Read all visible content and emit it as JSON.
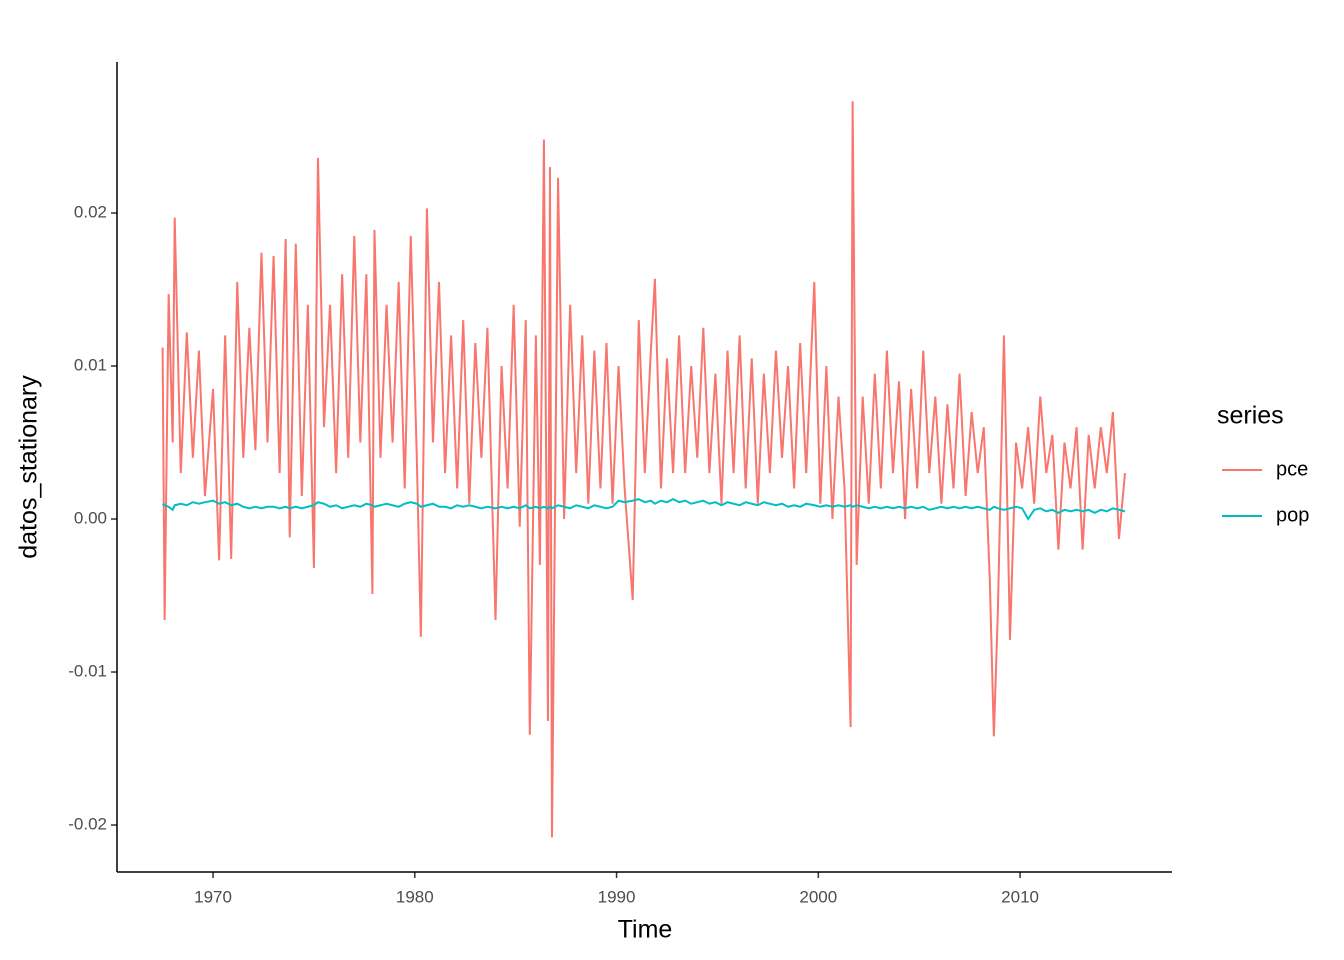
{
  "chart_data": {
    "type": "line",
    "x_label": "Time",
    "y_label": "datos_stationary",
    "legend_title": "series",
    "legend": "right",
    "x": [
      1967.5,
      1967.6,
      1967.8,
      1968.0,
      1968.1,
      1968.4,
      1968.7,
      1969.0,
      1969.3,
      1969.6,
      1970.0,
      1970.3,
      1970.6,
      1970.9,
      1971.2,
      1971.5,
      1971.8,
      1972.1,
      1972.4,
      1972.7,
      1973.0,
      1973.3,
      1973.6,
      1973.8,
      1974.1,
      1974.4,
      1974.7,
      1975.0,
      1975.2,
      1975.5,
      1975.8,
      1976.1,
      1976.4,
      1976.7,
      1977.0,
      1977.3,
      1977.6,
      1977.9,
      1978.0,
      1978.3,
      1978.6,
      1978.9,
      1979.2,
      1979.5,
      1979.8,
      1980.1,
      1980.3,
      1980.6,
      1980.9,
      1981.2,
      1981.5,
      1981.8,
      1982.1,
      1982.4,
      1982.7,
      1983.0,
      1983.3,
      1983.6,
      1984.0,
      1984.3,
      1984.6,
      1984.9,
      1985.2,
      1985.5,
      1985.7,
      1986.0,
      1986.2,
      1986.4,
      1986.6,
      1986.7,
      1986.8,
      1987.1,
      1987.4,
      1987.7,
      1988.0,
      1988.3,
      1988.6,
      1988.9,
      1989.2,
      1989.5,
      1989.8,
      1990.1,
      1990.4,
      1990.8,
      1991.1,
      1991.4,
      1991.7,
      1991.9,
      1992.2,
      1992.5,
      1992.8,
      1993.1,
      1993.4,
      1993.7,
      1994.0,
      1994.3,
      1994.6,
      1994.9,
      1995.2,
      1995.5,
      1995.8,
      1996.1,
      1996.4,
      1996.7,
      1997.0,
      1997.3,
      1997.6,
      1997.9,
      1998.2,
      1998.5,
      1998.8,
      1999.1,
      1999.4,
      1999.8,
      2000.1,
      2000.4,
      2000.7,
      2001.0,
      2001.3,
      2001.6,
      2001.7,
      2001.9,
      2002.2,
      2002.5,
      2002.8,
      2003.1,
      2003.4,
      2003.7,
      2004.0,
      2004.3,
      2004.6,
      2004.9,
      2005.2,
      2005.5,
      2005.8,
      2006.1,
      2006.4,
      2006.7,
      2007.0,
      2007.3,
      2007.6,
      2007.9,
      2008.2,
      2008.5,
      2008.7,
      2008.9,
      2009.2,
      2009.5,
      2009.8,
      2010.1,
      2010.4,
      2010.7,
      2011.0,
      2011.3,
      2011.6,
      2011.9,
      2012.2,
      2012.5,
      2012.8,
      2013.1,
      2013.4,
      2013.7,
      2014.0,
      2014.3,
      2014.6,
      2014.9,
      2015.2
    ],
    "series": [
      {
        "name": "pce",
        "color": "#F8766D",
        "values": [
          0.0112,
          -0.0066,
          0.0147,
          0.005,
          0.0197,
          0.003,
          0.0122,
          0.004,
          0.011,
          0.0015,
          0.0085,
          -0.0027,
          0.012,
          -0.0026,
          0.0155,
          0.004,
          0.0125,
          0.0045,
          0.0174,
          0.005,
          0.0172,
          0.003,
          0.0183,
          -0.0012,
          0.018,
          0.0015,
          0.014,
          -0.0032,
          0.0236,
          0.006,
          0.014,
          0.003,
          0.016,
          0.004,
          0.0185,
          0.005,
          0.016,
          -0.0049,
          0.0189,
          0.004,
          0.014,
          0.005,
          0.0155,
          0.002,
          0.0185,
          0.004,
          -0.0077,
          0.0203,
          0.005,
          0.0155,
          0.003,
          0.012,
          0.002,
          0.013,
          0.001,
          0.0115,
          0.004,
          0.0125,
          -0.0066,
          0.01,
          0.002,
          0.014,
          -0.0005,
          0.013,
          -0.0141,
          0.012,
          -0.003,
          0.0248,
          -0.0132,
          0.023,
          -0.0208,
          0.0223,
          0.0,
          0.014,
          0.003,
          0.012,
          0.001,
          0.011,
          0.002,
          0.0115,
          0.001,
          0.01,
          0.002,
          -0.0053,
          0.013,
          0.003,
          0.011,
          0.0157,
          0.002,
          0.0105,
          0.003,
          0.012,
          0.003,
          0.01,
          0.004,
          0.0125,
          0.003,
          0.0095,
          0.001,
          0.011,
          0.003,
          0.012,
          0.002,
          0.0105,
          0.001,
          0.0095,
          0.003,
          0.011,
          0.004,
          0.01,
          0.002,
          0.0115,
          0.003,
          0.0155,
          0.001,
          0.01,
          0.0,
          0.008,
          0.002,
          -0.0136,
          0.0273,
          -0.003,
          0.008,
          0.001,
          0.0095,
          0.002,
          0.011,
          0.003,
          0.009,
          0.0,
          0.0085,
          0.002,
          0.011,
          0.003,
          0.008,
          0.001,
          0.0075,
          0.002,
          0.0095,
          0.0015,
          0.007,
          0.003,
          0.006,
          -0.004,
          -0.0142,
          -0.006,
          0.012,
          -0.0079,
          0.005,
          0.002,
          0.006,
          0.001,
          0.008,
          0.003,
          0.0055,
          -0.002,
          0.005,
          0.002,
          0.006,
          -0.002,
          0.0055,
          0.002,
          0.006,
          0.003,
          0.007,
          -0.0013,
          0.003
        ]
      },
      {
        "name": "pop",
        "color": "#00BFC4",
        "values": [
          0.001,
          0.0009,
          0.0008,
          0.0006,
          0.0009,
          0.001,
          0.0009,
          0.0011,
          0.001,
          0.0011,
          0.0012,
          0.001,
          0.0011,
          0.0009,
          0.001,
          0.0008,
          0.0007,
          0.0008,
          0.0007,
          0.0008,
          0.0008,
          0.0007,
          0.0008,
          0.0007,
          0.0008,
          0.0007,
          0.0008,
          0.0009,
          0.0011,
          0.001,
          0.0008,
          0.0009,
          0.0007,
          0.0008,
          0.0009,
          0.0008,
          0.001,
          0.0009,
          0.0008,
          0.0009,
          0.001,
          0.0009,
          0.0008,
          0.001,
          0.0011,
          0.001,
          0.0008,
          0.0009,
          0.001,
          0.0008,
          0.0008,
          0.0007,
          0.0009,
          0.0008,
          0.0009,
          0.0008,
          0.0007,
          0.0008,
          0.0007,
          0.0008,
          0.0007,
          0.0008,
          0.0007,
          0.0009,
          0.0007,
          0.0008,
          0.0007,
          0.0008,
          0.0007,
          0.0008,
          0.0007,
          0.0009,
          0.0008,
          0.0007,
          0.0009,
          0.0008,
          0.0007,
          0.0009,
          0.0008,
          0.0007,
          0.0008,
          0.0012,
          0.0011,
          0.0012,
          0.0013,
          0.0011,
          0.0012,
          0.001,
          0.0012,
          0.0011,
          0.0013,
          0.0011,
          0.0012,
          0.001,
          0.0011,
          0.0012,
          0.001,
          0.0011,
          0.0009,
          0.0011,
          0.001,
          0.0009,
          0.0011,
          0.001,
          0.0009,
          0.0011,
          0.001,
          0.0009,
          0.001,
          0.0008,
          0.0009,
          0.0008,
          0.001,
          0.0009,
          0.0008,
          0.0009,
          0.0008,
          0.0009,
          0.0008,
          0.0009,
          0.0008,
          0.0009,
          0.0008,
          0.0007,
          0.0008,
          0.0007,
          0.0008,
          0.0007,
          0.0008,
          0.0007,
          0.0008,
          0.0007,
          0.0008,
          0.0006,
          0.0007,
          0.0008,
          0.0007,
          0.0008,
          0.0007,
          0.0008,
          0.0007,
          0.0008,
          0.0007,
          0.0006,
          0.0008,
          0.0007,
          0.0006,
          0.0007,
          0.0008,
          0.0007,
          0.0,
          0.0006,
          0.0007,
          0.0005,
          0.0006,
          0.0004,
          0.0006,
          0.0005,
          0.0006,
          0.0005,
          0.0006,
          0.0004,
          0.0006,
          0.0005,
          0.0007,
          0.0006,
          0.0005
        ]
      }
    ],
    "xlim": [
      1965.24,
      2017.53
    ],
    "xticks": [
      1970,
      1980,
      1990,
      2000,
      2010
    ],
    "ylim": [
      -0.02307,
      0.02987
    ],
    "yticks": [
      -0.02,
      -0.01,
      {
        "value": 0,
        "label": "0.00"
      },
      0.01,
      0.02
    ]
  }
}
